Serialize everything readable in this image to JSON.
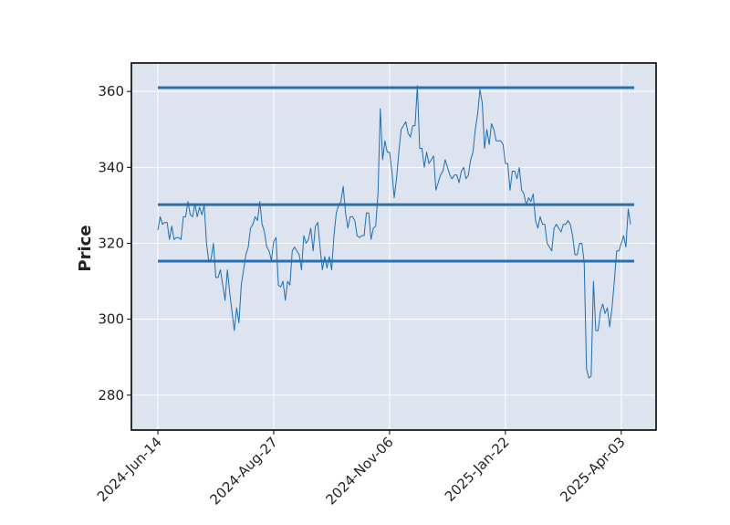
{
  "chart_data": {
    "type": "line",
    "title": "",
    "xlabel": "",
    "ylabel": "Price",
    "ylim": [
      270.8,
      367.5
    ],
    "y_ticks": [
      280,
      300,
      320,
      340,
      360
    ],
    "x_tick_labels": [
      "2024-Jun-14",
      "2024-Aug-27",
      "2024-Nov-06",
      "2025-Jan-22",
      "2025-Apr-03"
    ],
    "grid": true,
    "background_color": "#dde3ef",
    "line_color": "#1f6fb0",
    "level_color": "#2770b2",
    "horizontal_levels": [
      361.0,
      330.2,
      315.3
    ],
    "series": [
      {
        "values": [
          323.5,
          327.0,
          325.0,
          325.5,
          325.5,
          321.0,
          324.5,
          321.0,
          321.5,
          321.5,
          321.0,
          327.0,
          327.0,
          331.0,
          327.5,
          327.0,
          330.5,
          327.0,
          329.5,
          327.5,
          330.0,
          320.0,
          315.0,
          316.0,
          320.0,
          311.0,
          311.0,
          313.0,
          309.0,
          305.0,
          313.0,
          307.0,
          302.0,
          297.0,
          303.0,
          299.0,
          309.0,
          313.0,
          317.0,
          319.0,
          324.0,
          325.0,
          327.0,
          326.0,
          331.0,
          325.0,
          323.0,
          319.0,
          318.0,
          315.5,
          320.5,
          321.5,
          309.0,
          308.5,
          310.0,
          305.0,
          310.0,
          309.0,
          318.0,
          319.0,
          318.0,
          317.0,
          313.0,
          322.0,
          320.0,
          321.0,
          324.0,
          318.0,
          324.5,
          325.5,
          319.0,
          313.0,
          316.5,
          313.5,
          316.5,
          313.0,
          322.0,
          328.0,
          330.0,
          331.0,
          335.0,
          328.0,
          324.0,
          327.0,
          327.0,
          326.0,
          322.0,
          321.5,
          322.0,
          322.0,
          328.0,
          328.0,
          321.0,
          324.0,
          324.5,
          333.0,
          355.5,
          342.0,
          347.0,
          344.0,
          344.0,
          339.0,
          332.0,
          337.0,
          344.0,
          350.0,
          351.0,
          352.0,
          349.0,
          348.0,
          351.0,
          351.0,
          361.5,
          345.0,
          345.0,
          340.0,
          344.0,
          341.0,
          342.0,
          343.0,
          334.0,
          336.0,
          338.0,
          339.0,
          342.0,
          340.0,
          338.0,
          337.0,
          338.0,
          338.0,
          336.0,
          339.0,
          340.0,
          337.0,
          338.0,
          342.0,
          344.0,
          350.0,
          354.0,
          360.5,
          357.0,
          345.0,
          350.0,
          346.0,
          351.5,
          350.0,
          347.0,
          347.0,
          347.0,
          346.0,
          341.0,
          341.0,
          334.0,
          339.0,
          339.0,
          337.0,
          340.0,
          334.0,
          333.0,
          330.0,
          332.0,
          331.0,
          333.0,
          326.0,
          324.0,
          327.0,
          325.0,
          325.0,
          320.0,
          319.0,
          318.0,
          324.0,
          325.0,
          324.0,
          323.0,
          325.0,
          325.0,
          326.0,
          325.0,
          322.0,
          317.0,
          317.0,
          320.0,
          320.0,
          315.0,
          287.0,
          284.5,
          285.0,
          310.0,
          297.0,
          297.0,
          302.0,
          304.0,
          301.5,
          303.0,
          298.0,
          303.0,
          310.0,
          318.0,
          318.0,
          320.0,
          322.0,
          319.0,
          329.0,
          325.0
        ]
      }
    ]
  }
}
